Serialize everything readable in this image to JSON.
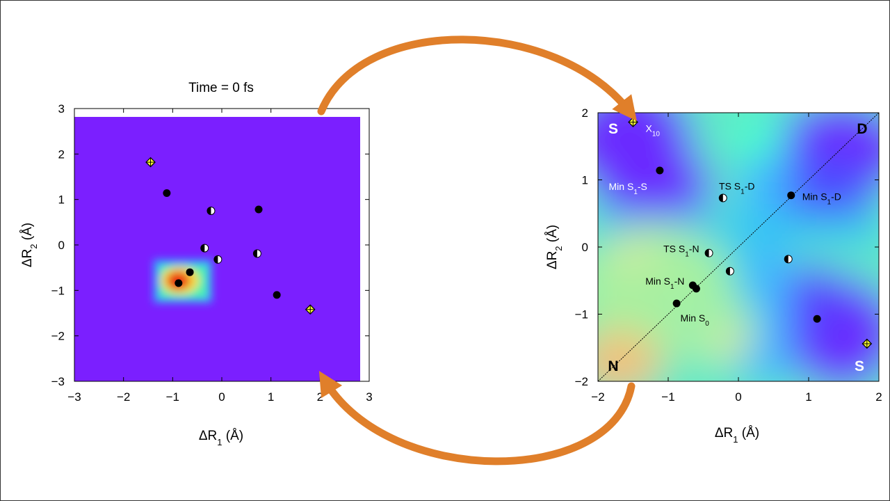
{
  "colors": {
    "background": "#7B1FFF",
    "arrow": "#E07F2A",
    "marker_black": "#000000",
    "marker_yellow": "#FFFF33"
  },
  "chart_data": [
    {
      "type": "heatmap",
      "title": "Time =  0 fs",
      "xlabel": {
        "main": "ΔR",
        "sub": "1",
        "unit": " (Å)"
      },
      "ylabel": {
        "main": "ΔR",
        "sub": "2",
        "unit": " (Å)"
      },
      "xlim": [
        -3,
        3
      ],
      "ylim": [
        -3,
        3
      ],
      "xticks": [
        -3,
        -2,
        -1,
        0,
        1,
        2,
        3
      ],
      "yticks": [
        -3,
        -2,
        -1,
        0,
        1,
        2,
        3
      ],
      "xtick_labels": [
        "−3",
        "−2",
        "−1",
        "0",
        "1",
        "2",
        "3"
      ],
      "ytick_labels": [
        "−3",
        "−2",
        "−1",
        "0",
        "1",
        "2",
        "3"
      ],
      "density_peak": {
        "x": -0.88,
        "y": -0.78
      },
      "points": [
        {
          "x": -1.45,
          "y": 1.82,
          "kind": "crossing"
        },
        {
          "x": -1.12,
          "y": 1.14,
          "kind": "minimum"
        },
        {
          "x": 0.75,
          "y": 0.78,
          "kind": "minimum"
        },
        {
          "x": -0.22,
          "y": 0.75,
          "kind": "transition"
        },
        {
          "x": -0.35,
          "y": -0.07,
          "kind": "transition"
        },
        {
          "x": -0.08,
          "y": -0.32,
          "kind": "transition"
        },
        {
          "x": 0.72,
          "y": -0.19,
          "kind": "transition"
        },
        {
          "x": -0.65,
          "y": -0.6,
          "kind": "minimum"
        },
        {
          "x": -0.88,
          "y": -0.84,
          "kind": "minimum"
        },
        {
          "x": 1.12,
          "y": -1.1,
          "kind": "minimum"
        },
        {
          "x": 1.8,
          "y": -1.42,
          "kind": "crossing"
        }
      ]
    },
    {
      "type": "heatmap",
      "xlabel": {
        "main": "ΔR",
        "sub": "1",
        "unit": " (Å)"
      },
      "ylabel": {
        "main": "ΔR",
        "sub": "2",
        "unit": " (Å)"
      },
      "xlim": [
        -2,
        2
      ],
      "ylim": [
        -2,
        2
      ],
      "xticks": [
        -2,
        -1,
        0,
        1,
        2
      ],
      "yticks": [
        -2,
        -1,
        0,
        1,
        2
      ],
      "xtick_labels": [
        "−2",
        "−1",
        "0",
        "1",
        "2"
      ],
      "ytick_labels": [
        "−2",
        "−1",
        "0",
        "1",
        "2"
      ],
      "diagonal": true,
      "corner_labels": {
        "top_left": "S",
        "top_right": "D",
        "bottom_left": "N",
        "bottom_right": "S"
      },
      "points": [
        {
          "x": -1.5,
          "y": 1.86,
          "kind": "crossing",
          "label": "X",
          "sub": "10"
        },
        {
          "x": -1.12,
          "y": 1.14,
          "kind": "minimum",
          "label": "Min S",
          "sub": "1",
          "suffix": "-S"
        },
        {
          "x": 0.75,
          "y": 0.77,
          "kind": "minimum",
          "label": "Min S",
          "sub": "1",
          "suffix": "-D"
        },
        {
          "x": -0.22,
          "y": 0.73,
          "kind": "transition",
          "label": "TS S",
          "sub": "1",
          "suffix": "-D"
        },
        {
          "x": -0.42,
          "y": -0.09,
          "kind": "transition",
          "label": "TS S",
          "sub": "1",
          "suffix": "-N"
        },
        {
          "x": -0.12,
          "y": -0.36,
          "kind": "transition"
        },
        {
          "x": 0.71,
          "y": -0.18,
          "kind": "transition"
        },
        {
          "x": -0.65,
          "y": -0.57,
          "kind": "minimum",
          "label": "Min S",
          "sub": "1",
          "suffix": "-N"
        },
        {
          "x": -0.6,
          "y": -0.62,
          "kind": "minimum"
        },
        {
          "x": -0.88,
          "y": -0.84,
          "kind": "minimum",
          "label": "Min S",
          "sub": "0"
        },
        {
          "x": 1.12,
          "y": -1.07,
          "kind": "minimum"
        },
        {
          "x": 1.83,
          "y": -1.44,
          "kind": "crossing"
        }
      ]
    }
  ]
}
